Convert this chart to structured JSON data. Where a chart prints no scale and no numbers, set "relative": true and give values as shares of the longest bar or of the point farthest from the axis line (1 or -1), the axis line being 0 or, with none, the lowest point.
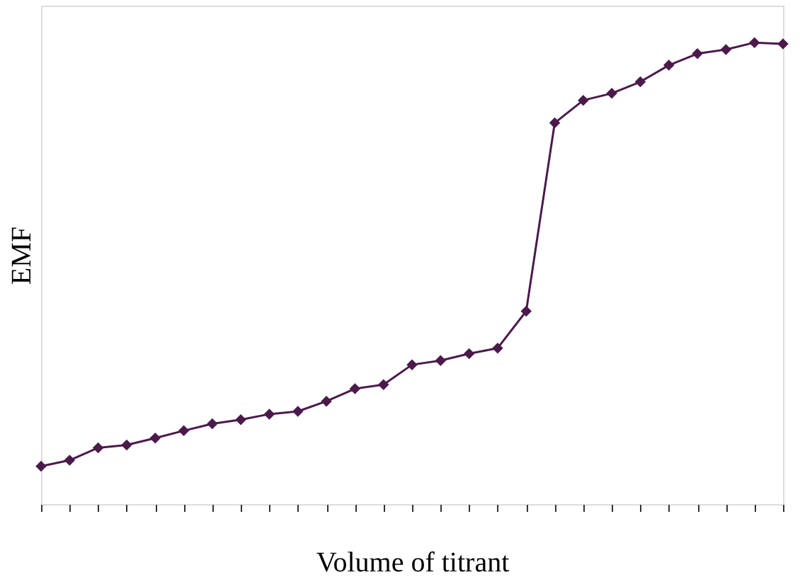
{
  "chart_data": {
    "type": "line",
    "relative": true,
    "xlabel": "Volume of titrant",
    "ylabel": "EMF",
    "marker": "diamond",
    "line_style": "solid",
    "categories": [
      null,
      null,
      null,
      null,
      null,
      null,
      null,
      null,
      null,
      null,
      null,
      null,
      null,
      null,
      null,
      null,
      null,
      null,
      null,
      null,
      null,
      null,
      null,
      null,
      null,
      null,
      null
    ],
    "series": [
      {
        "color": "#4b1a4b",
        "values": [
          0.082,
          0.095,
          0.122,
          0.128,
          0.143,
          0.159,
          0.174,
          0.183,
          0.195,
          0.201,
          0.223,
          0.25,
          0.259,
          0.302,
          0.311,
          0.326,
          0.338,
          0.418,
          0.826,
          0.875,
          0.89,
          0.915,
          0.951,
          0.976,
          0.985,
          1.0,
          0.997
        ]
      }
    ]
  }
}
